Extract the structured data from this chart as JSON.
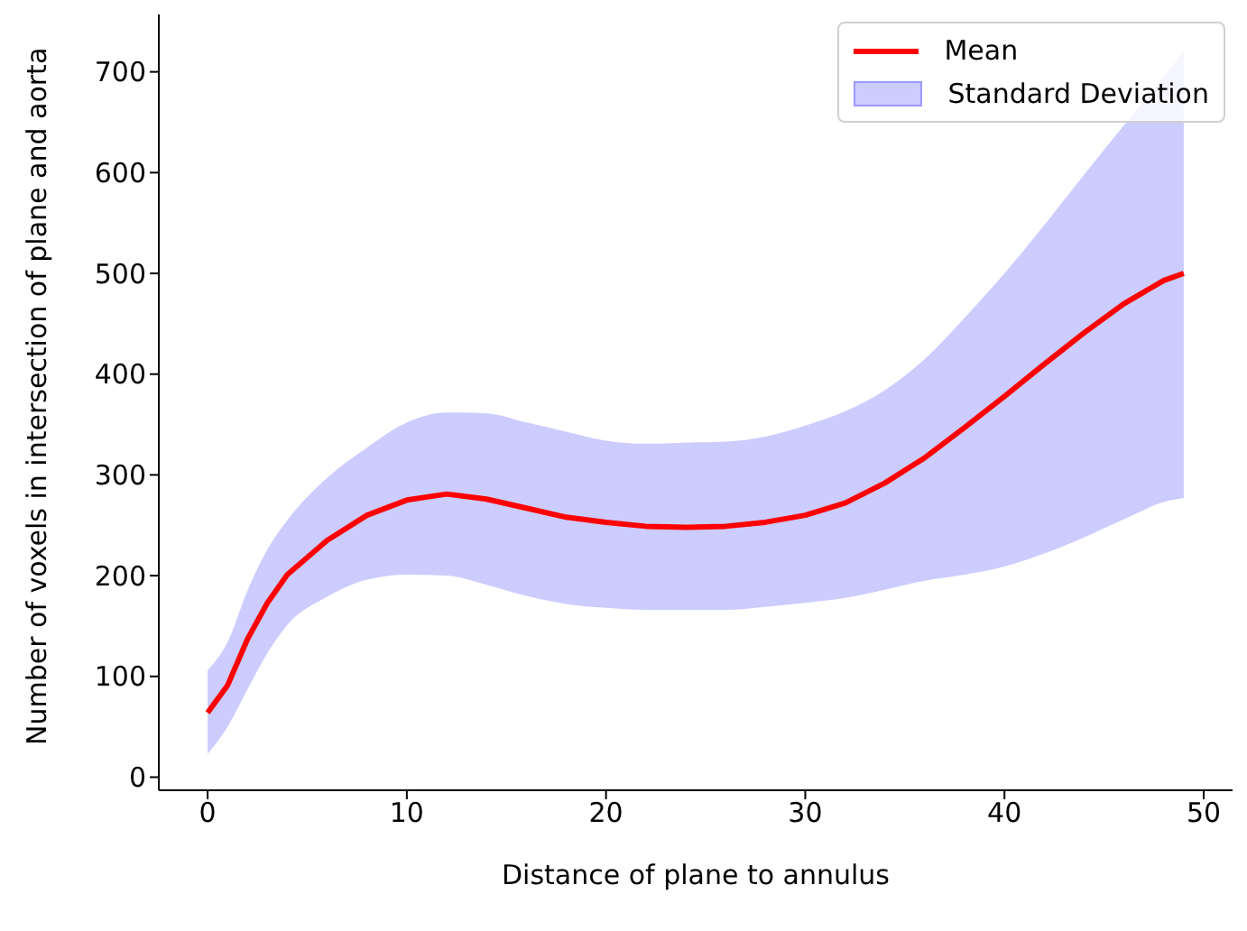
{
  "chart_data": {
    "type": "line",
    "xlabel": "Distance of plane to annulus",
    "ylabel": "Number of voxels in intersection of plane and aorta",
    "x": [
      0,
      1,
      2,
      3,
      4,
      6,
      8,
      10,
      12,
      14,
      16,
      18,
      20,
      22,
      24,
      26,
      28,
      30,
      32,
      34,
      36,
      38,
      40,
      42,
      44,
      46,
      48,
      49
    ],
    "series": [
      {
        "name": "Mean",
        "color": "#ff0000",
        "values": [
          64,
          91,
          137,
          173,
          201,
          235,
          260,
          275,
          281,
          276,
          267,
          258,
          253,
          249,
          248,
          249,
          253,
          260,
          272,
          292,
          317,
          347,
          378,
          410,
          441,
          470,
          493,
          500
        ]
      },
      {
        "name": "Standard Deviation",
        "type": "area",
        "color": "#ccccff",
        "values": [
          null,
          null,
          null,
          null,
          null,
          null,
          null,
          null,
          null,
          null,
          null,
          null,
          null,
          null,
          null,
          null,
          null,
          null,
          null,
          null,
          null,
          null,
          null,
          null,
          null,
          null,
          null,
          null
        ],
        "lower": [
          23,
          50,
          87,
          123,
          151,
          179,
          196,
          201,
          200,
          191,
          180,
          172,
          168,
          166,
          166,
          166,
          169,
          173,
          178,
          186,
          195,
          201,
          209,
          222,
          238,
          256,
          273,
          277
        ],
        "upper": [
          106,
          134,
          185,
          226,
          255,
          297,
          327,
          352,
          362,
          361,
          352,
          343,
          334,
          331,
          332,
          333,
          338,
          349,
          363,
          384,
          415,
          456,
          500,
          548,
          598,
          647,
          695,
          721
        ]
      }
    ],
    "xlim": [
      -2.45,
      51.45
    ],
    "xticks": [
      0,
      10,
      20,
      30,
      40,
      50
    ],
    "ylim": [
      -13,
      757
    ],
    "yticks": [
      0,
      100,
      200,
      300,
      400,
      500,
      600,
      700
    ],
    "grid": false,
    "legend": "top right",
    "marker": "none",
    "line_style": "solid"
  }
}
